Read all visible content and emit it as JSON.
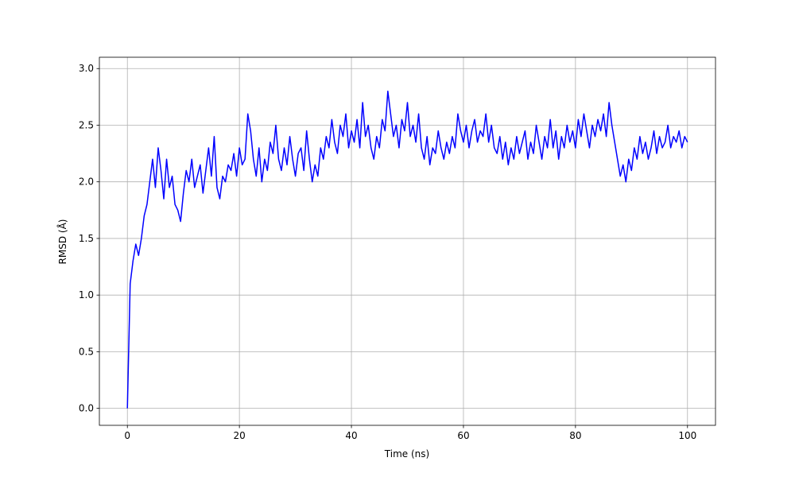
{
  "chart_data": {
    "type": "line",
    "xlabel": "Time (ns)",
    "ylabel": "RMSD (Å)",
    "color": "#0000ff",
    "grid": true,
    "xlim": [
      -5,
      105
    ],
    "ylim": [
      -0.15,
      3.1
    ],
    "xticks": [
      0,
      20,
      40,
      60,
      80,
      100
    ],
    "yticks": [
      {
        "value": 0,
        "label": "0.0"
      },
      0.5,
      {
        "value": 1,
        "label": "1.0"
      },
      1.5,
      {
        "value": 2,
        "label": "2.0"
      },
      2.5,
      {
        "value": 3,
        "label": "3.0"
      }
    ],
    "x": [
      0,
      0.5,
      1,
      1.5,
      2,
      2.5,
      3,
      3.5,
      4,
      4.5,
      5,
      5.5,
      6,
      6.5,
      7,
      7.5,
      8,
      8.5,
      9,
      9.5,
      10,
      10.5,
      11,
      11.5,
      12,
      12.5,
      13,
      13.5,
      14,
      14.5,
      15,
      15.5,
      16,
      16.5,
      17,
      17.5,
      18,
      18.5,
      19,
      19.5,
      20,
      20.5,
      21,
      21.5,
      22,
      22.5,
      23,
      23.5,
      24,
      24.5,
      25,
      25.5,
      26,
      26.5,
      27,
      27.5,
      28,
      28.5,
      29,
      29.5,
      30,
      30.5,
      31,
      31.5,
      32,
      32.5,
      33,
      33.5,
      34,
      34.5,
      35,
      35.5,
      36,
      36.5,
      37,
      37.5,
      38,
      38.5,
      39,
      39.5,
      40,
      40.5,
      41,
      41.5,
      42,
      42.5,
      43,
      43.5,
      44,
      44.5,
      45,
      45.5,
      46,
      46.5,
      47,
      47.5,
      48,
      48.5,
      49,
      49.5,
      50,
      50.5,
      51,
      51.5,
      52,
      52.5,
      53,
      53.5,
      54,
      54.5,
      55,
      55.5,
      56,
      56.5,
      57,
      57.5,
      58,
      58.5,
      59,
      59.5,
      60,
      60.5,
      61,
      61.5,
      62,
      62.5,
      63,
      63.5,
      64,
      64.5,
      65,
      65.5,
      66,
      66.5,
      67,
      67.5,
      68,
      68.5,
      69,
      69.5,
      70,
      70.5,
      71,
      71.5,
      72,
      72.5,
      73,
      73.5,
      74,
      74.5,
      75,
      75.5,
      76,
      76.5,
      77,
      77.5,
      78,
      78.5,
      79,
      79.5,
      80,
      80.5,
      81,
      81.5,
      82,
      82.5,
      83,
      83.5,
      84,
      84.5,
      85,
      85.5,
      86,
      86.5,
      87,
      87.5,
      88,
      88.5,
      89,
      89.5,
      90,
      90.5,
      91,
      91.5,
      92,
      92.5,
      93,
      93.5,
      94,
      94.5,
      95,
      95.5,
      96,
      96.5,
      97,
      97.5,
      98,
      98.5,
      99,
      99.5,
      100
    ],
    "values": [
      0,
      1.1,
      1.3,
      1.45,
      1.35,
      1.5,
      1.7,
      1.8,
      2.0,
      2.2,
      1.95,
      2.3,
      2.1,
      1.85,
      2.2,
      1.95,
      2.05,
      1.8,
      1.75,
      1.65,
      1.9,
      2.1,
      2.0,
      2.2,
      1.95,
      2.05,
      2.15,
      1.9,
      2.1,
      2.3,
      2.05,
      2.4,
      1.95,
      1.85,
      2.05,
      2.0,
      2.15,
      2.1,
      2.25,
      2.05,
      2.3,
      2.15,
      2.2,
      2.6,
      2.45,
      2.2,
      2.05,
      2.3,
      2.0,
      2.2,
      2.1,
      2.35,
      2.25,
      2.5,
      2.2,
      2.1,
      2.3,
      2.15,
      2.4,
      2.2,
      2.05,
      2.25,
      2.3,
      2.1,
      2.45,
      2.2,
      2.0,
      2.15,
      2.05,
      2.3,
      2.2,
      2.4,
      2.3,
      2.55,
      2.35,
      2.25,
      2.5,
      2.4,
      2.6,
      2.3,
      2.45,
      2.35,
      2.55,
      2.3,
      2.7,
      2.4,
      2.5,
      2.3,
      2.2,
      2.4,
      2.3,
      2.55,
      2.45,
      2.8,
      2.6,
      2.4,
      2.5,
      2.3,
      2.55,
      2.45,
      2.7,
      2.4,
      2.5,
      2.35,
      2.6,
      2.3,
      2.2,
      2.4,
      2.15,
      2.3,
      2.25,
      2.45,
      2.3,
      2.2,
      2.35,
      2.25,
      2.4,
      2.3,
      2.6,
      2.45,
      2.35,
      2.5,
      2.3,
      2.45,
      2.55,
      2.35,
      2.45,
      2.4,
      2.6,
      2.35,
      2.5,
      2.3,
      2.25,
      2.4,
      2.2,
      2.35,
      2.15,
      2.3,
      2.2,
      2.4,
      2.25,
      2.35,
      2.45,
      2.2,
      2.35,
      2.25,
      2.5,
      2.35,
      2.2,
      2.4,
      2.3,
      2.55,
      2.3,
      2.45,
      2.2,
      2.4,
      2.3,
      2.5,
      2.35,
      2.45,
      2.3,
      2.55,
      2.4,
      2.6,
      2.45,
      2.3,
      2.5,
      2.4,
      2.55,
      2.45,
      2.6,
      2.4,
      2.7,
      2.5,
      2.35,
      2.2,
      2.05,
      2.15,
      2.0,
      2.2,
      2.1,
      2.3,
      2.2,
      2.4,
      2.25,
      2.35,
      2.2,
      2.3,
      2.45,
      2.25,
      2.4,
      2.3,
      2.35,
      2.5,
      2.3,
      2.4,
      2.35,
      2.45,
      2.3,
      2.4,
      2.35
    ]
  }
}
